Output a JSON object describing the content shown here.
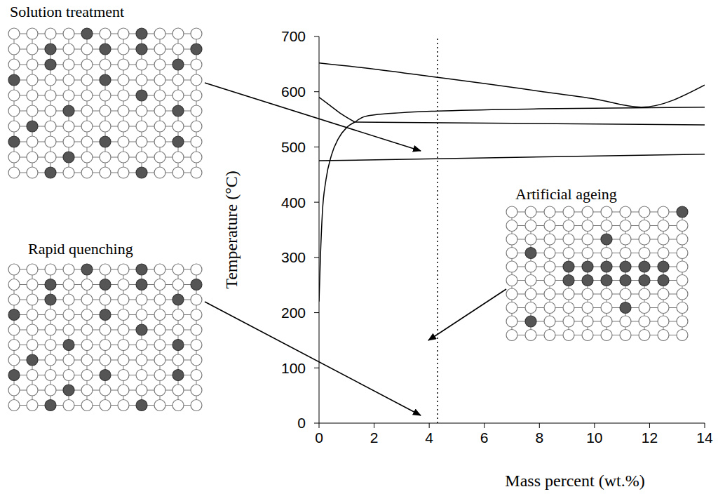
{
  "chart_data": {
    "type": "line",
    "x_label": "Mass percent (wt.%)",
    "y_label": "Temperature (°C)",
    "xlim": [
      0,
      14
    ],
    "xticks": [
      0,
      2,
      4,
      6,
      8,
      10,
      12,
      14
    ],
    "ylim": [
      0,
      700
    ],
    "yticks": [
      0,
      100,
      200,
      300,
      400,
      500,
      600,
      700
    ],
    "grid": false,
    "series": [
      {
        "x": [
          0,
          2,
          4,
          6,
          8,
          10,
          11.7,
          14
        ],
        "values": [
          652,
          641,
          628,
          615,
          601,
          587,
          572,
          612
        ],
        "color": "#000000",
        "line_style": "solid"
      },
      {
        "x": [
          0,
          0.4,
          0.8,
          1.3
        ],
        "values": [
          590,
          575,
          560,
          545
        ],
        "color": "#000000",
        "line_style": "solid"
      },
      {
        "x": [
          1.3,
          1.6,
          2,
          3,
          4.3,
          8,
          14
        ],
        "values": [
          545,
          554,
          558,
          562,
          565,
          569,
          572
        ],
        "color": "#000000",
        "line_style": "solid"
      },
      {
        "x": [
          1.3,
          14
        ],
        "values": [
          545,
          540
        ],
        "color": "#000000",
        "line_style": "solid"
      },
      {
        "x": [
          0,
          0.05,
          0.12,
          0.25,
          0.45,
          0.7,
          1.0,
          1.3
        ],
        "values": [
          220,
          300,
          380,
          440,
          485,
          515,
          535,
          545
        ],
        "color": "#000000",
        "line_style": "solid"
      },
      {
        "x": [
          0,
          14
        ],
        "values": [
          475,
          487
        ],
        "color": "#000000",
        "line_style": "solid"
      },
      {
        "x": [
          4.3,
          4.3
        ],
        "values": [
          0,
          700
        ],
        "color": "#000000",
        "line_style": "dotted"
      }
    ],
    "annotations": [
      {
        "text": "Solution treatment"
      },
      {
        "text": "Rapid quenching"
      },
      {
        "text": "Artificial ageing"
      }
    ]
  }
}
